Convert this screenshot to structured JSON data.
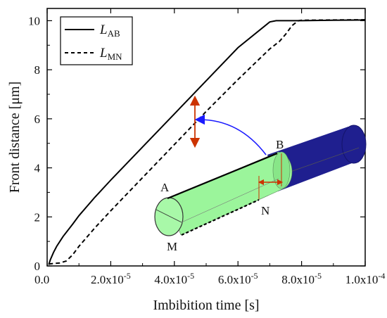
{
  "chart_data": {
    "type": "line",
    "xlabel": "Imbibition time [s]",
    "ylabel": "Front distance [μm]",
    "xlim": [
      0,
      0.0001
    ],
    "ylim": [
      0,
      10.5
    ],
    "x_ticks": [
      {
        "value": 0,
        "label": "0.0"
      },
      {
        "value": 2e-05,
        "label": "2.0x10",
        "exp": "-5"
      },
      {
        "value": 4e-05,
        "label": "4.0x10",
        "exp": "-5"
      },
      {
        "value": 6e-05,
        "label": "6.0x10",
        "exp": "-5"
      },
      {
        "value": 8e-05,
        "label": "8.0x10",
        "exp": "-5"
      },
      {
        "value": 0.0001,
        "label": "1.0x10",
        "exp": "-4"
      }
    ],
    "y_ticks": [
      {
        "value": 0,
        "label": "0"
      },
      {
        "value": 2,
        "label": "2"
      },
      {
        "value": 4,
        "label": "4"
      },
      {
        "value": 6,
        "label": "6"
      },
      {
        "value": 8,
        "label": "8"
      },
      {
        "value": 10,
        "label": "10"
      }
    ],
    "legend_position": "top-left",
    "series": [
      {
        "name": "L",
        "sub": "AB",
        "style": "solid",
        "color": "#000000",
        "x": [
          5e-07,
          1e-06,
          2e-06,
          3e-06,
          5e-06,
          8e-06,
          1e-05,
          1.5e-05,
          2e-05,
          3e-05,
          4e-05,
          5e-05,
          6e-05,
          7e-05,
          7.2e-05,
          8e-05,
          9e-05,
          0.0001
        ],
        "y": [
          0.05,
          0.25,
          0.55,
          0.8,
          1.2,
          1.7,
          2.05,
          2.8,
          3.5,
          4.85,
          6.2,
          7.55,
          8.9,
          9.95,
          10.0,
          10.0,
          10.02,
          10.03
        ]
      },
      {
        "name": "L",
        "sub": "MN",
        "style": "dashed",
        "color": "#000000",
        "x": [
          5e-07,
          2e-06,
          4e-06,
          6e-06,
          8e-06,
          1e-05,
          1.5e-05,
          2e-05,
          3e-05,
          4e-05,
          5e-05,
          6e-05,
          7e-05,
          7.3e-05,
          7.5e-05,
          7.7e-05,
          7.9e-05,
          8e-05,
          9e-05,
          0.0001
        ],
        "y": [
          0.08,
          0.1,
          0.12,
          0.2,
          0.45,
          0.8,
          1.55,
          2.25,
          3.6,
          4.95,
          6.3,
          7.6,
          8.85,
          9.15,
          9.45,
          9.8,
          10.0,
          10.02,
          10.03,
          10.04
        ]
      }
    ]
  },
  "inset": {
    "labels": {
      "a": "A",
      "b": "B",
      "m": "M",
      "n": "N"
    },
    "colors": {
      "filled": "#9bf59b",
      "empty": "#1f1f8f",
      "arrow_curve": "#1a1aff",
      "arrow_gap": "#cc3300"
    }
  }
}
